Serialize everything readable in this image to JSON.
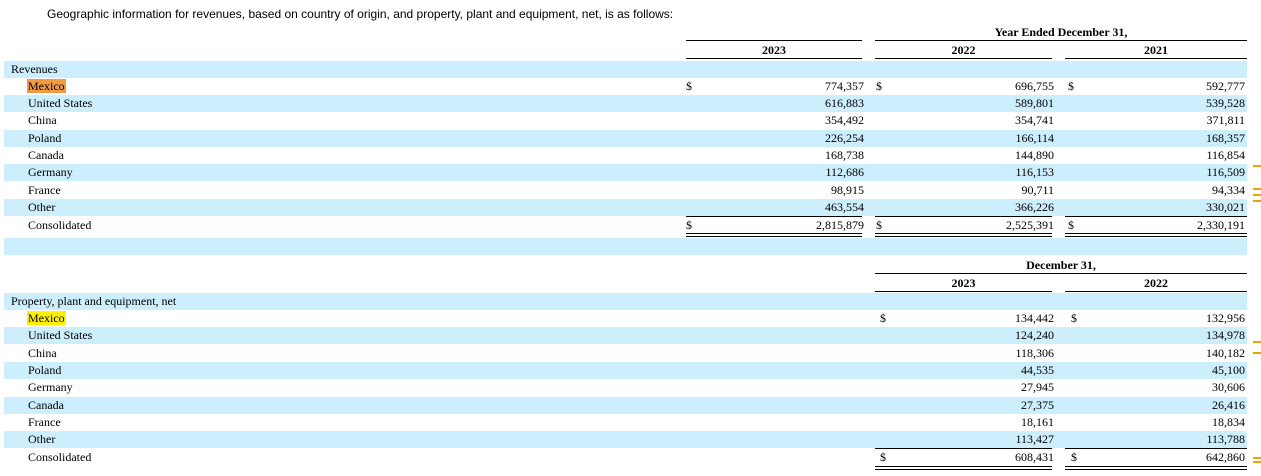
{
  "intro": "Geographic information for revenues, based on country of origin, and property, plant and equipment, net, is as follows:",
  "revenues": {
    "period_header": "Year Ended December 31,",
    "years": [
      "2023",
      "2022",
      "2021"
    ],
    "section_label": "Revenues",
    "currency": "$",
    "rows": [
      {
        "label": "Mexico",
        "v": [
          "774,357",
          "696,755",
          "592,777"
        ]
      },
      {
        "label": "United States",
        "v": [
          "616,883",
          "589,801",
          "539,528"
        ]
      },
      {
        "label": "China",
        "v": [
          "354,492",
          "354,741",
          "371,811"
        ]
      },
      {
        "label": "Poland",
        "v": [
          "226,254",
          "166,114",
          "168,357"
        ]
      },
      {
        "label": "Canada",
        "v": [
          "168,738",
          "144,890",
          "116,854"
        ]
      },
      {
        "label": "Germany",
        "v": [
          "112,686",
          "116,153",
          "116,509"
        ]
      },
      {
        "label": "France",
        "v": [
          "98,915",
          "90,711",
          "94,334"
        ]
      },
      {
        "label": "Other",
        "v": [
          "463,554",
          "366,226",
          "330,021"
        ]
      }
    ],
    "total": {
      "label": "Consolidated",
      "v": [
        "2,815,879",
        "2,525,391",
        "2,330,191"
      ]
    }
  },
  "ppe": {
    "period_header": "December 31,",
    "years": [
      "2023",
      "2022"
    ],
    "section_label": "Property, plant and equipment, net",
    "currency": "$",
    "rows": [
      {
        "label": "Mexico",
        "v": [
          "134,442",
          "132,956"
        ]
      },
      {
        "label": "United States",
        "v": [
          "124,240",
          "134,978"
        ]
      },
      {
        "label": "China",
        "v": [
          "118,306",
          "140,182"
        ]
      },
      {
        "label": "Poland",
        "v": [
          "44,535",
          "45,100"
        ]
      },
      {
        "label": "Germany",
        "v": [
          "27,945",
          "30,606"
        ]
      },
      {
        "label": "Canada",
        "v": [
          "27,375",
          "26,416"
        ]
      },
      {
        "label": "France",
        "v": [
          "18,161",
          "18,834"
        ]
      },
      {
        "label": "Other",
        "v": [
          "113,427",
          "113,788"
        ]
      }
    ],
    "total": {
      "label": "Consolidated",
      "v": [
        "608,431",
        "642,860"
      ]
    }
  },
  "colors": {
    "band": "#cdeefc",
    "highlight_orange": "#f39a45",
    "highlight_yellow": "#fff200",
    "margin_mark": "#e8a800"
  }
}
